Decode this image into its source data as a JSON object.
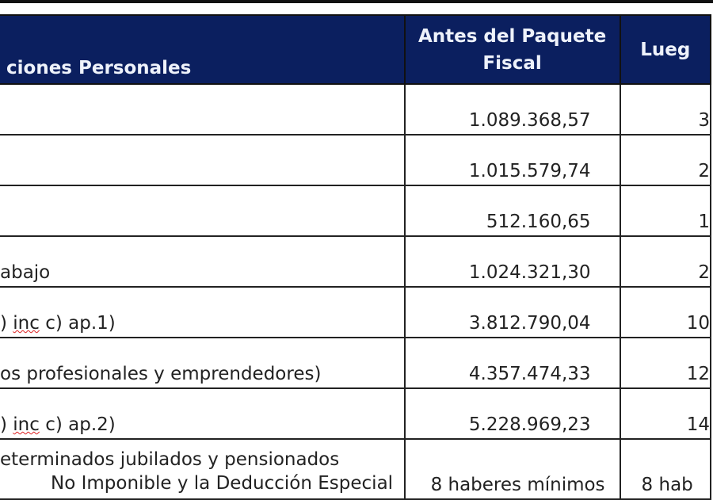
{
  "header": {
    "col0": "ciones Personales",
    "col1": "Antes del Paquete Fiscal",
    "col2": "Lueg"
  },
  "rows": [
    {
      "label": "",
      "before": "1.089.368,57",
      "after": "3"
    },
    {
      "label": "",
      "before": "1.015.579,74",
      "after": "2"
    },
    {
      "label": "",
      "before": "512.160,65",
      "after": "1"
    },
    {
      "label": "abajo",
      "before": "1.024.321,30",
      "after": "2"
    },
    {
      "label_pre": ") ",
      "label_wavy": "inc",
      "label_post": " c) ap.1)",
      "before": "3.812.790,04",
      "after": "10"
    },
    {
      "label": "os profesionales y emprendedores)",
      "before": "4.357.474,33",
      "after": "12"
    },
    {
      "label_pre": ") ",
      "label_wavy": "inc",
      "label_post": " c) ap.2)",
      "before": "5.228.969,23",
      "after": "14"
    },
    {
      "label_line1": "eterminados jubilados y pensionados",
      "label_line2": "No Imponible y la Deducción Especial",
      "before": "8 haberes mínimos",
      "after": "8 hab"
    }
  ],
  "colors": {
    "header_bg": "#0b1f5f",
    "header_text": "#eef2fb"
  }
}
